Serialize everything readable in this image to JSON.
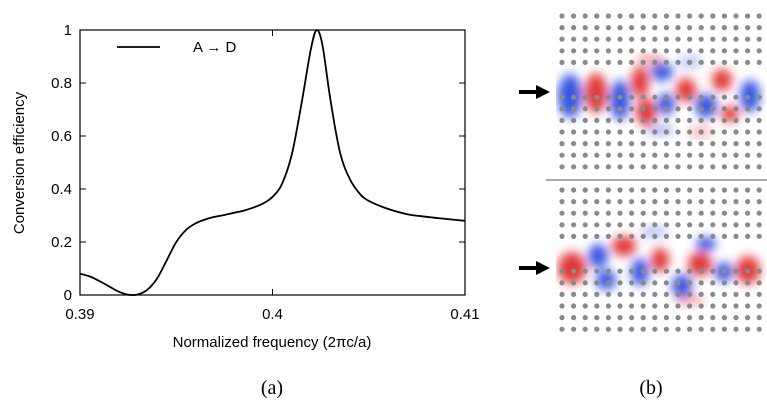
{
  "chart_data": {
    "type": "line",
    "xlabel": "Normalized frequency (2πc/a)",
    "ylabel": "Conversion efficiency",
    "xlim": [
      0.39,
      0.41
    ],
    "ylim": [
      0,
      1
    ],
    "x_ticks": [
      "0.39",
      "0.4",
      "0.41"
    ],
    "x_tick_values": [
      0.39,
      0.4,
      0.41
    ],
    "y_ticks": [
      "0",
      "0.2",
      "0.4",
      "0.6",
      "0.8",
      "1"
    ],
    "y_tick_values": [
      0,
      0.2,
      0.4,
      0.6,
      0.8,
      1
    ],
    "legend_position": "top-left",
    "series": [
      {
        "name": "A → D",
        "color": "#000000",
        "x": [
          0.39,
          0.3905,
          0.391,
          0.3915,
          0.392,
          0.3925,
          0.393,
          0.3935,
          0.394,
          0.3945,
          0.395,
          0.3955,
          0.396,
          0.3965,
          0.397,
          0.3975,
          0.398,
          0.3985,
          0.399,
          0.3995,
          0.4,
          0.4005,
          0.401,
          0.4015,
          0.402,
          0.4023,
          0.4026,
          0.403,
          0.4035,
          0.404,
          0.4045,
          0.405,
          0.406,
          0.407,
          0.408,
          0.409,
          0.41
        ],
        "y": [
          0.08,
          0.07,
          0.053,
          0.033,
          0.013,
          0.001,
          0.002,
          0.02,
          0.062,
          0.13,
          0.2,
          0.245,
          0.27,
          0.285,
          0.295,
          0.302,
          0.31,
          0.318,
          0.33,
          0.345,
          0.37,
          0.42,
          0.53,
          0.72,
          0.93,
          1.0,
          0.94,
          0.74,
          0.54,
          0.44,
          0.385,
          0.355,
          0.325,
          0.305,
          0.295,
          0.287,
          0.28
        ]
      }
    ]
  },
  "panels": {
    "a_label": "(a)",
    "b_label": "(b)"
  },
  "field_colors": {
    "positive": "#dd2222",
    "negative": "#2244dd",
    "rod": "#8a8a8a",
    "arrow": "#000000"
  }
}
